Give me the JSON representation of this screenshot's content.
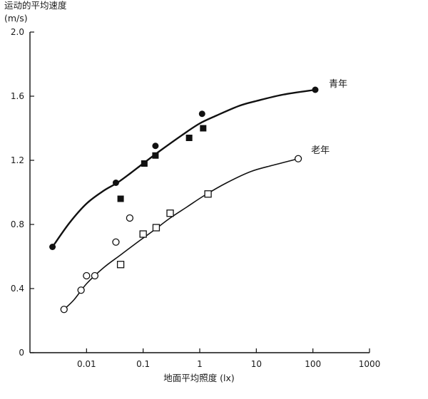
{
  "chart_data": {
    "type": "scatter",
    "title": "",
    "ylabel_line1": "运动的平均速度",
    "ylabel_line2": "(m/s)",
    "xlabel": "地面平均照度 (lx)",
    "x_scale": "log",
    "xlim": [
      0.001,
      1000
    ],
    "ylim": [
      0,
      2.0
    ],
    "x_ticks": [
      0.01,
      0.1,
      1,
      10,
      100,
      1000
    ],
    "x_tick_labels": [
      "0.01",
      "0.1",
      "1",
      "10",
      "100",
      "1000"
    ],
    "y_ticks": [
      0,
      0.4,
      0.8,
      1.2,
      1.6,
      2.0
    ],
    "y_tick_labels": [
      "0",
      "0.4",
      "0.8",
      "1.2",
      "1.6",
      "2.0"
    ],
    "grid": false,
    "series": [
      {
        "name": "青年",
        "label_color": "#111111",
        "fit_curve": [
          [
            0.0025,
            0.66
          ],
          [
            0.005,
            0.81
          ],
          [
            0.01,
            0.93
          ],
          [
            0.02,
            1.01
          ],
          [
            0.035,
            1.06
          ],
          [
            0.06,
            1.12
          ],
          [
            0.1,
            1.18
          ],
          [
            0.2,
            1.26
          ],
          [
            0.5,
            1.36
          ],
          [
            1.0,
            1.43
          ],
          [
            2.0,
            1.48
          ],
          [
            5.0,
            1.54
          ],
          [
            10.0,
            1.57
          ],
          [
            30.0,
            1.61
          ],
          [
            110.0,
            1.64
          ]
        ],
        "groups": [
          {
            "marker": "filled-circle",
            "points": [
              [
                0.0025,
                0.66
              ],
              [
                0.033,
                1.06
              ],
              [
                0.165,
                1.29
              ],
              [
                1.1,
                1.49
              ],
              [
                110.0,
                1.64
              ]
            ]
          },
          {
            "marker": "filled-square",
            "points": [
              [
                0.04,
                0.96
              ],
              [
                0.105,
                1.18
              ],
              [
                0.165,
                1.23
              ],
              [
                0.65,
                1.34
              ],
              [
                1.15,
                1.4
              ]
            ]
          }
        ]
      },
      {
        "name": "老年",
        "label_color": "#111111",
        "fit_curve": [
          [
            0.004,
            0.27
          ],
          [
            0.006,
            0.33
          ],
          [
            0.01,
            0.43
          ],
          [
            0.02,
            0.53
          ],
          [
            0.04,
            0.61
          ],
          [
            0.08,
            0.69
          ],
          [
            0.15,
            0.76
          ],
          [
            0.3,
            0.84
          ],
          [
            0.6,
            0.91
          ],
          [
            1.2,
            0.98
          ],
          [
            3.0,
            1.06
          ],
          [
            8.0,
            1.13
          ],
          [
            20.0,
            1.17
          ],
          [
            55.0,
            1.21
          ]
        ],
        "groups": [
          {
            "marker": "open-circle",
            "points": [
              [
                0.004,
                0.27
              ],
              [
                0.008,
                0.39
              ],
              [
                0.01,
                0.48
              ],
              [
                0.014,
                0.48
              ],
              [
                0.033,
                0.69
              ],
              [
                0.058,
                0.84
              ],
              [
                55.0,
                1.21
              ]
            ]
          },
          {
            "marker": "open-square",
            "points": [
              [
                0.04,
                0.55
              ],
              [
                0.1,
                0.74
              ],
              [
                0.17,
                0.78
              ],
              [
                0.3,
                0.87
              ],
              [
                1.4,
                0.99
              ]
            ]
          }
        ]
      }
    ]
  }
}
